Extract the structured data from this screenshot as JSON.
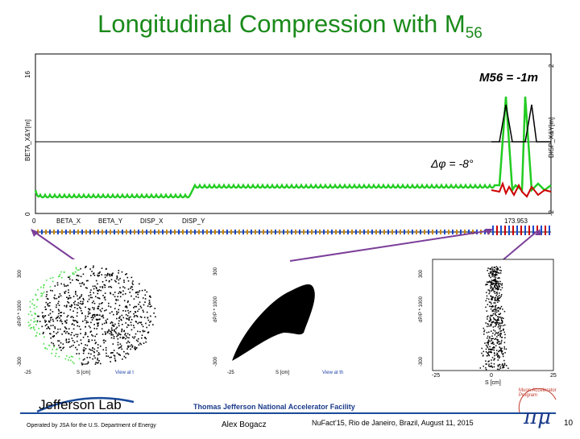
{
  "slide": {
    "title_main": "Longitudinal Compression with M",
    "title_sub": "56",
    "page_number": "10"
  },
  "lattice_plot": {
    "left_axis_label": "BETA_X&Y[m]",
    "right_axis_label": "DISP_X&Y[m]",
    "left_max": "16",
    "left_min": "0",
    "right_max": "2",
    "right_min": "-2",
    "x_start": "0",
    "x_end": "173.953",
    "legend": [
      "BETA_X",
      "BETA_Y",
      "DISP_X",
      "DISP_Y"
    ],
    "m56_annotation": "M56 = -1m",
    "phase_annotation": "Δφ = -8°",
    "colors": {
      "beta_x": "#000000",
      "beta_y": "#22cc22",
      "disp": "#cc0000"
    }
  },
  "phase_plots": [
    {
      "y_axis": "dP/P * 1000",
      "x_axis": "S [cm]",
      "y_top": "300",
      "y_bottom": "-300",
      "x_left": "-25",
      "footer": "View at t"
    },
    {
      "y_axis": "dP/P * 1000",
      "x_axis": "S [cm]",
      "y_top": "300",
      "y_bottom": "-300",
      "x_left": "-25",
      "footer": "View at th"
    },
    {
      "y_axis": "dP/P * 1000",
      "x_axis": "S [cm]",
      "y_top": "300",
      "y_bottom": "-300",
      "x_left": "-25",
      "x_mid": "0",
      "x_right": "25"
    }
  ],
  "footer": {
    "lab_name": "Jefferson Lab",
    "facility": "Thomas Jefferson National Accelerator Facility",
    "operator": "Operated by JSA for the U.S. Department of Energy",
    "author": "Alex Bogacz",
    "conference": "NuFact'15, Rio de Janeiro, Brazil, August 11, 2015",
    "muon_logo": "Muon Accelerator Program"
  }
}
